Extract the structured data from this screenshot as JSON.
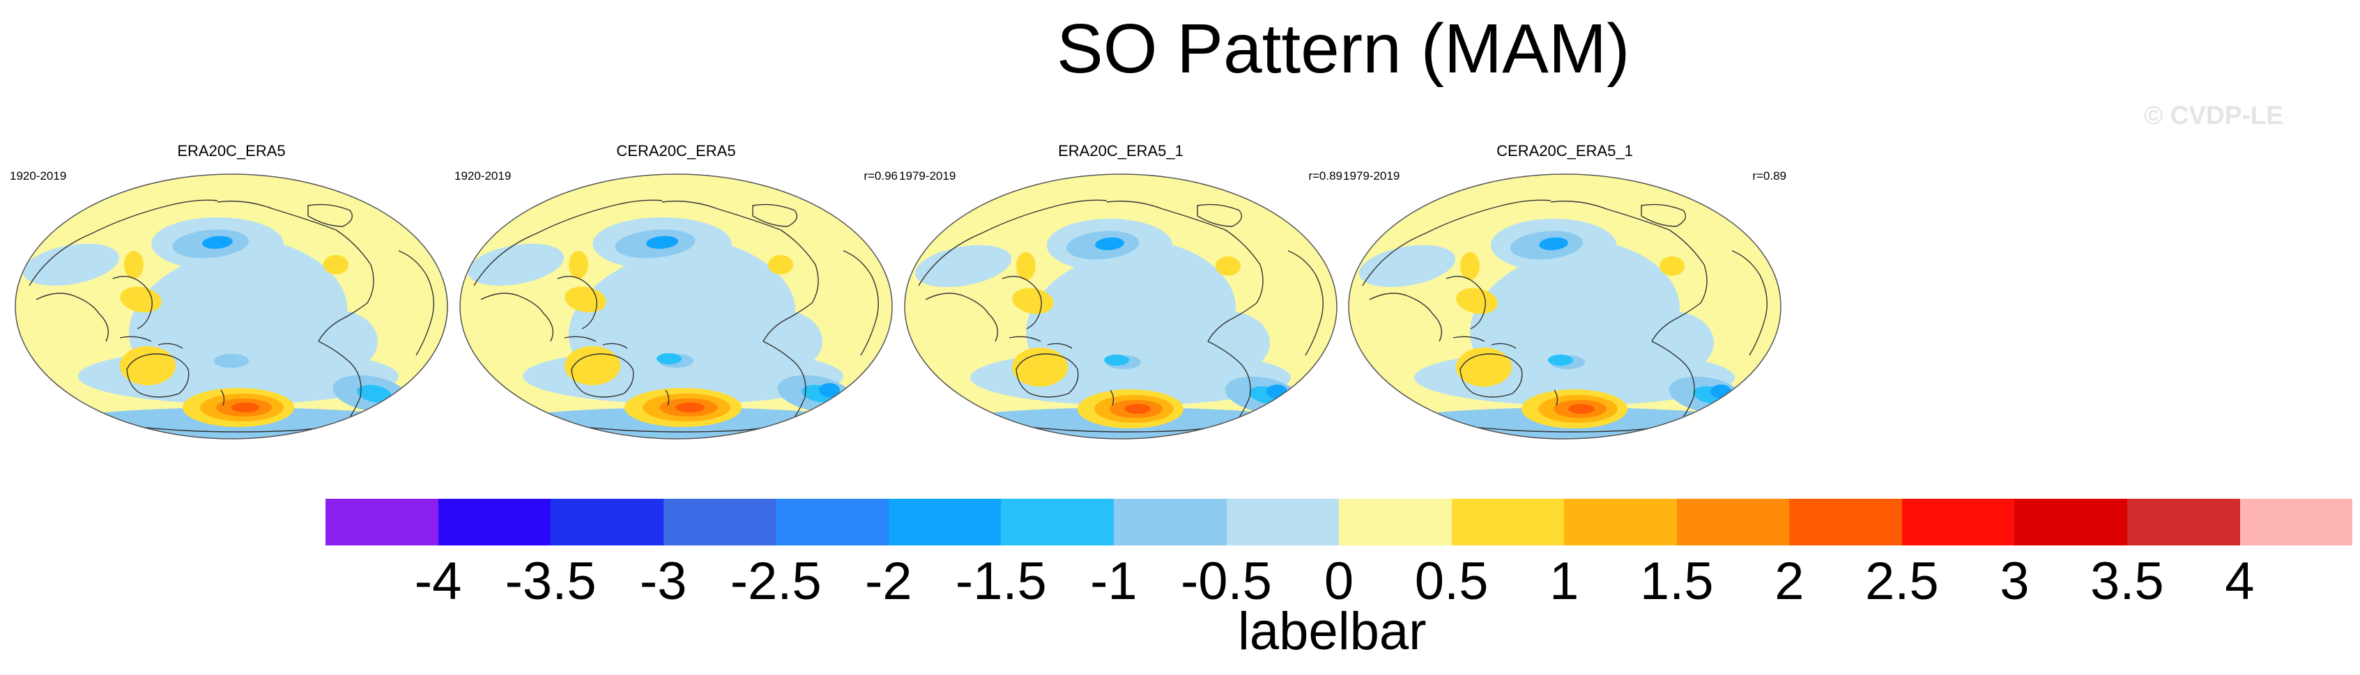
{
  "figure": {
    "title": "SO Pattern (MAM)",
    "watermark": "© CVDP-LE"
  },
  "panels": [
    {
      "title": "ERA20C_ERA5",
      "years": "1920-2019",
      "corr": ""
    },
    {
      "title": "CERA20C_ERA5",
      "years": "1920-2019",
      "corr": "r=0.96"
    },
    {
      "title": "ERA20C_ERA5_1",
      "years": "1979-2019",
      "corr": "r=0.89"
    },
    {
      "title": "CERA20C_ERA5_1",
      "years": "1979-2019",
      "corr": "r=0.89"
    }
  ],
  "labelbar": {
    "title": "labelbar",
    "tick_labels": [
      "-4",
      "-3.5",
      "-3",
      "-2.5",
      "-2",
      "-1.5",
      "-1",
      "-0.5",
      "0",
      "0.5",
      "1",
      "1.5",
      "2",
      "2.5",
      "3",
      "3.5",
      "4"
    ],
    "colors": [
      "#8a1ff0",
      "#2b08fa",
      "#1e30f0",
      "#3c6ae4",
      "#2886f8",
      "#10a4fc",
      "#28c0f8",
      "#8ccaf0",
      "#b8e0f2",
      "#fcf8a0",
      "#ffdc32",
      "#ffb410",
      "#ff8a08",
      "#ff5a04",
      "#ff0f08",
      "#dc0204",
      "#d22c2c",
      "#ffb4b4"
    ]
  },
  "map_colors": {
    "background": "#fcf8a0",
    "light_blue": "#b8e0f2",
    "mid_blue": "#8ccaf0",
    "blue": "#28c0f8",
    "deep_blue": "#10a4fc",
    "yellow": "#ffdc32",
    "orange": "#ffb410",
    "dark_orange": "#ff8a08",
    "red_orange": "#ff5a04",
    "coast": "#333333"
  }
}
